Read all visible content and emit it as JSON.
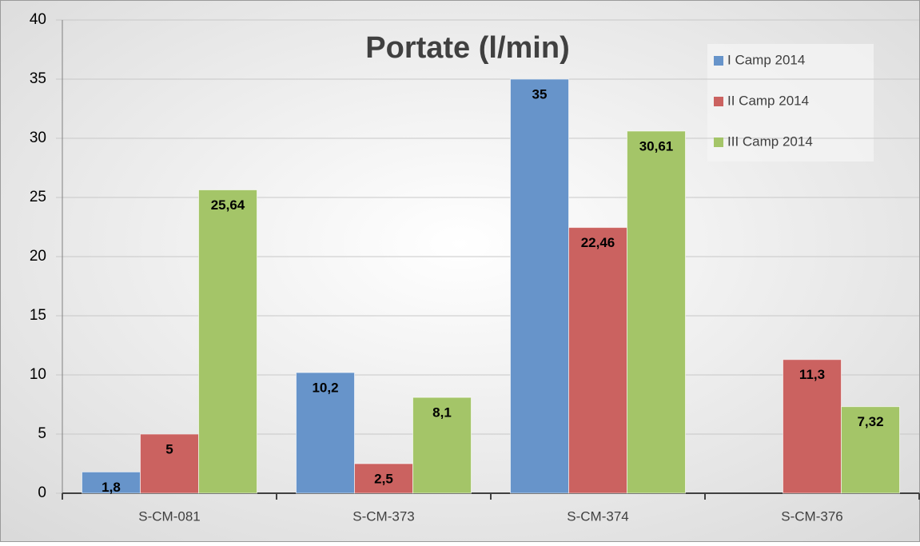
{
  "chart_data": {
    "type": "bar",
    "title": "Portate  (l/min)",
    "categories": [
      "S-CM-081",
      "S-CM-373",
      "S-CM-374",
      "S-CM-376"
    ],
    "series": [
      {
        "name": "I Camp 2014",
        "color": "#6794ca",
        "values": [
          1.8,
          10.2,
          35,
          null
        ],
        "value_labels": [
          "1,8",
          "10,2",
          "35",
          null
        ]
      },
      {
        "name": "II Camp 2014",
        "color": "#cb6260",
        "values": [
          5,
          2.5,
          22.46,
          11.3
        ],
        "value_labels": [
          "5",
          "2,5",
          "22,46",
          "11,3"
        ]
      },
      {
        "name": "III Camp 2014",
        "color": "#a4c568",
        "values": [
          25.64,
          8.1,
          30.61,
          7.32
        ],
        "value_labels": [
          "25,64",
          "8,1",
          "30,61",
          "7,32"
        ]
      }
    ],
    "ylim": [
      0,
      40
    ],
    "yticks": [
      0,
      5,
      10,
      15,
      20,
      25,
      30,
      35,
      40
    ],
    "grid": true,
    "legend": "top-right"
  }
}
